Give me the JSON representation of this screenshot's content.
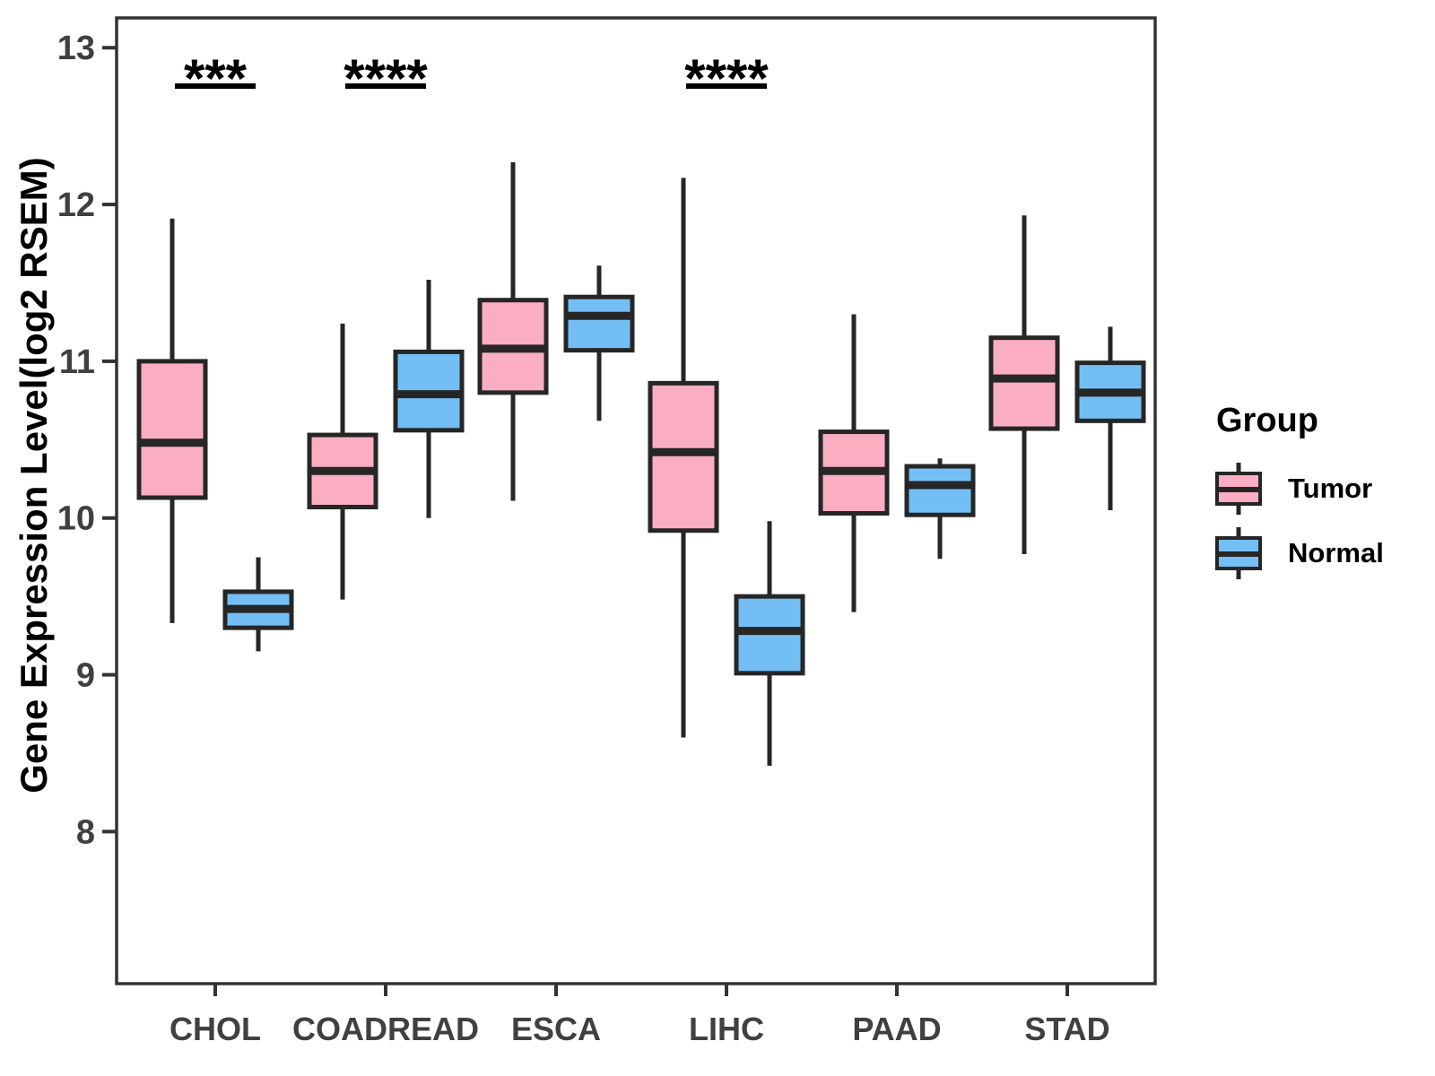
{
  "ylabel": "Gene Expression Level(log2 RSEM)",
  "legend": {
    "title": "Group",
    "items": [
      {
        "label": "Tumor"
      },
      {
        "label": "Normal"
      }
    ]
  },
  "colors": {
    "tumor_fill": "#FBAEC1",
    "normal_fill": "#73BFF5",
    "box_stroke": "#262626",
    "axis_text": "#404040",
    "axis_line": "#333333",
    "annotation": "#000000",
    "background": "#ffffff"
  },
  "chart_data": {
    "type": "boxplot",
    "title": "",
    "xlabel": "",
    "ylabel": "Gene Expression Level(log2 RSEM)",
    "categories": [
      "CHOL",
      "COADREAD",
      "ESCA",
      "LIHC",
      "PAAD",
      "STAD"
    ],
    "yticks": [
      8,
      9,
      10,
      11,
      12,
      13
    ],
    "ylim": [
      7.03,
      13.19
    ],
    "grid": false,
    "legend_position": "right",
    "series": [
      {
        "name": "Tumor",
        "color": "#FBAEC1",
        "boxes": [
          {
            "category": "CHOL",
            "whisker_low": 9.33,
            "q1": 10.13,
            "median": 10.48,
            "q3": 11.0,
            "whisker_high": 11.91
          },
          {
            "category": "COADREAD",
            "whisker_low": 9.48,
            "q1": 10.07,
            "median": 10.3,
            "q3": 10.53,
            "whisker_high": 11.24
          },
          {
            "category": "ESCA",
            "whisker_low": 10.11,
            "q1": 10.8,
            "median": 11.08,
            "q3": 11.39,
            "whisker_high": 12.27
          },
          {
            "category": "LIHC",
            "whisker_low": 8.6,
            "q1": 9.92,
            "median": 10.42,
            "q3": 10.86,
            "whisker_high": 12.17
          },
          {
            "category": "PAAD",
            "whisker_low": 9.4,
            "q1": 10.03,
            "median": 10.3,
            "q3": 10.55,
            "whisker_high": 11.3
          },
          {
            "category": "STAD",
            "whisker_low": 9.77,
            "q1": 10.57,
            "median": 10.89,
            "q3": 11.15,
            "whisker_high": 11.93
          }
        ]
      },
      {
        "name": "Normal",
        "color": "#73BFF5",
        "boxes": [
          {
            "category": "CHOL",
            "whisker_low": 9.15,
            "q1": 9.3,
            "median": 9.42,
            "q3": 9.53,
            "whisker_high": 9.75
          },
          {
            "category": "COADREAD",
            "whisker_low": 10.0,
            "q1": 10.56,
            "median": 10.79,
            "q3": 11.06,
            "whisker_high": 11.52
          },
          {
            "category": "ESCA",
            "whisker_low": 10.62,
            "q1": 11.07,
            "median": 11.29,
            "q3": 11.41,
            "whisker_high": 11.61
          },
          {
            "category": "LIHC",
            "whisker_low": 8.42,
            "q1": 9.01,
            "median": 9.28,
            "q3": 9.5,
            "whisker_high": 9.98
          },
          {
            "category": "PAAD",
            "whisker_low": 9.74,
            "q1": 10.02,
            "median": 10.21,
            "q3": 10.33,
            "whisker_high": 10.38
          },
          {
            "category": "STAD",
            "whisker_low": 10.05,
            "q1": 10.62,
            "median": 10.8,
            "q3": 10.99,
            "whisker_high": 11.22
          }
        ]
      }
    ],
    "significance": [
      {
        "category": "CHOL",
        "label": "***"
      },
      {
        "category": "COADREAD",
        "label": "****"
      },
      {
        "category": "LIHC",
        "label": "****"
      }
    ]
  }
}
